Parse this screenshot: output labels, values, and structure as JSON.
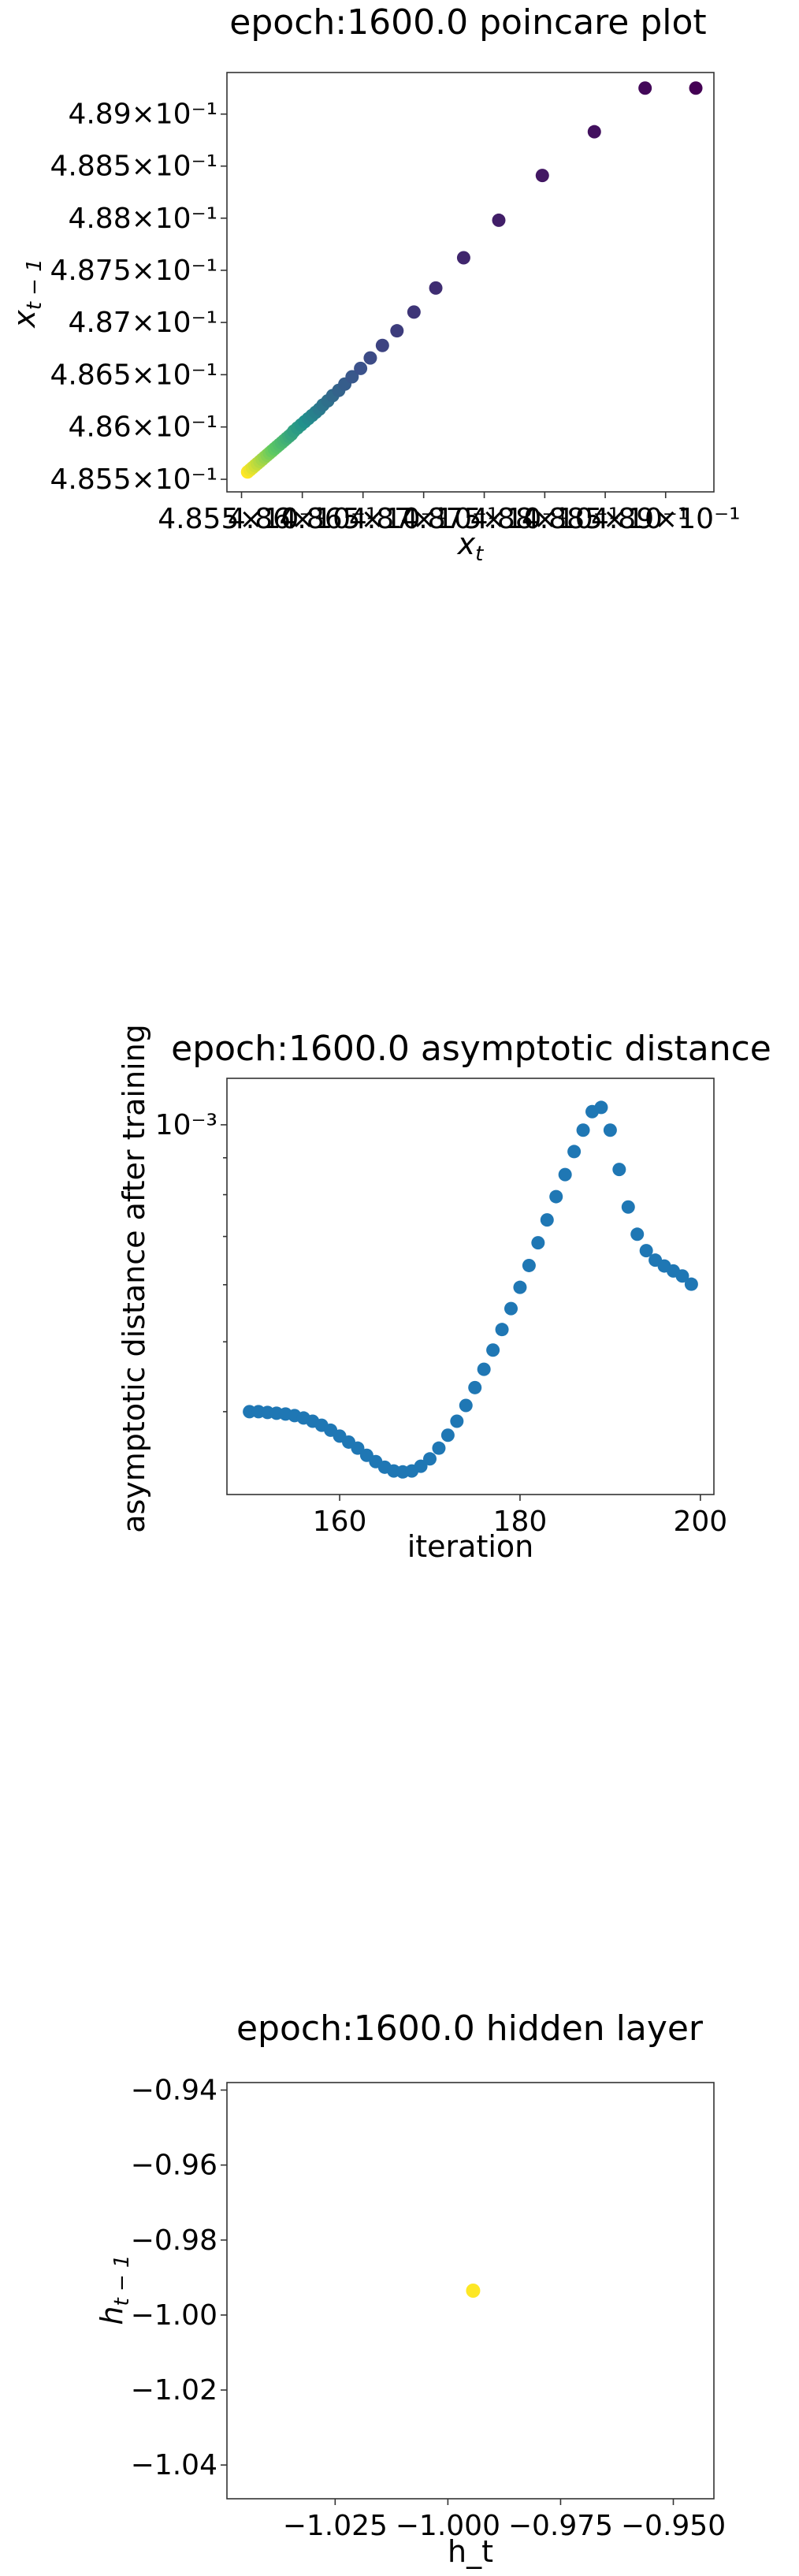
{
  "chart_data": [
    {
      "type": "scatter",
      "title": "epoch:1600.0 poincare plot",
      "xlabel": "x_t",
      "ylabel": "x_{t-1}",
      "scale": "log",
      "colormap": "viridis",
      "xlim": [
        0.48538,
        0.4894
      ],
      "ylim": [
        0.48538,
        0.4894
      ],
      "x_tick_labels": [
        "4.855×10⁻¹",
        "4.86×10⁻¹",
        "4.865×10⁻¹",
        "4.87×10⁻¹",
        "4.875×10⁻¹",
        "4.88×10⁻¹",
        "4.885×10⁻¹",
        "4.89×10⁻¹"
      ],
      "y_tick_labels": [
        "4.855×10⁻¹",
        "4.86×10⁻¹",
        "4.865×10⁻¹",
        "4.87×10⁻¹",
        "4.875×10⁻¹",
        "4.88×10⁻¹",
        "4.885×10⁻¹",
        "4.89×10⁻¹"
      ],
      "x_ticks": [
        0.4855,
        0.486,
        0.4865,
        0.487,
        0.4875,
        0.488,
        0.4885,
        0.489
      ],
      "y_ticks": [
        0.4855,
        0.486,
        0.4865,
        0.487,
        0.4875,
        0.488,
        0.4885,
        0.489
      ],
      "x": [
        0.48555,
        0.48557,
        0.48559,
        0.48561,
        0.48563,
        0.48565,
        0.48567,
        0.48569,
        0.48571,
        0.48573,
        0.48575,
        0.48577,
        0.48579,
        0.48581,
        0.48583,
        0.48585,
        0.48587,
        0.48589,
        0.48591,
        0.48593,
        0.48596,
        0.48599,
        0.48602,
        0.48605,
        0.48608,
        0.48611,
        0.48614,
        0.48617,
        0.48621,
        0.48625,
        0.4863,
        0.48635,
        0.48641,
        0.48648,
        0.48656,
        0.48666,
        0.48678,
        0.48692,
        0.4871,
        0.48733,
        0.48762,
        0.48798,
        0.48841,
        0.48883,
        0.48925
      ],
      "y": [
        0.48557,
        0.48559,
        0.48561,
        0.48563,
        0.48565,
        0.48567,
        0.48569,
        0.48571,
        0.48573,
        0.48575,
        0.48577,
        0.48579,
        0.48581,
        0.48583,
        0.48585,
        0.48587,
        0.48589,
        0.48591,
        0.48593,
        0.48596,
        0.48599,
        0.48602,
        0.48605,
        0.48608,
        0.48611,
        0.48614,
        0.48617,
        0.48621,
        0.48625,
        0.4863,
        0.48635,
        0.48641,
        0.48648,
        0.48656,
        0.48666,
        0.48678,
        0.48692,
        0.4871,
        0.48733,
        0.48762,
        0.48798,
        0.48841,
        0.48883,
        0.48925,
        0.48925
      ],
      "point_color_order": "later iterations yellow, earlier iterations purple"
    },
    {
      "type": "scatter",
      "title": "epoch:1600.0 asymptotic distance",
      "xlabel": "iteration",
      "ylabel": "asymptotic distance after training",
      "scale": "log-y",
      "color": "#1f77b4",
      "xlim": [
        147.5,
        201.5
      ],
      "ylim": [
        0.000307,
        0.00116
      ],
      "x_ticks": [
        160,
        180,
        200
      ],
      "x_tick_labels": [
        "160",
        "180",
        "200"
      ],
      "y_major_tick": 0.001,
      "y_major_label": "10⁻³",
      "x": [
        150,
        151,
        152,
        153,
        154,
        155,
        156,
        157,
        158,
        159,
        160,
        161,
        162,
        163,
        164,
        165,
        166,
        167,
        168,
        169,
        170,
        171,
        172,
        173,
        174,
        175,
        176,
        177,
        178,
        179,
        180,
        181,
        182,
        183,
        184,
        185,
        186,
        187,
        188,
        189,
        190,
        191,
        192,
        193,
        194,
        195,
        196,
        197,
        198,
        199
      ],
      "y": [
        0.0004,
        0.0004,
        0.000399,
        0.000398,
        0.000397,
        0.000395,
        0.000392,
        0.000388,
        0.000383,
        0.000377,
        0.00037,
        0.000363,
        0.000356,
        0.000348,
        0.000341,
        0.000335,
        0.000331,
        0.00033,
        0.000331,
        0.000336,
        0.000344,
        0.000356,
        0.000371,
        0.000388,
        0.000408,
        0.000432,
        0.000458,
        0.000487,
        0.00052,
        0.000556,
        0.000595,
        0.000638,
        0.000686,
        0.000738,
        0.000795,
        0.000853,
        0.000918,
        0.000983,
        0.001043,
        0.001057,
        0.000983,
        0.000867,
        0.000769,
        0.000705,
        0.000669,
        0.000649,
        0.000637,
        0.000627,
        0.000617,
        0.000601
      ]
    },
    {
      "type": "scatter",
      "title": "epoch:1600.0 hidden layer",
      "xlabel": "h_t",
      "ylabel": "h_{t-1}",
      "colormap": "viridis",
      "xlim": [
        -1.049,
        -0.941
      ],
      "ylim": [
        -1.049,
        -0.938
      ],
      "x_ticks": [
        -1.025,
        -1.0,
        -0.975,
        -0.95
      ],
      "x_tick_labels": [
        "−1.025",
        "−1.000",
        "−0.975",
        "−0.950"
      ],
      "y_ticks": [
        -0.94,
        -0.96,
        -0.98,
        -1.0,
        -1.02,
        -1.04
      ],
      "y_tick_labels": [
        "−0.94",
        "−0.96",
        "−0.98",
        "−1.00",
        "−1.02",
        "−1.04"
      ],
      "x": [
        -0.9944
      ],
      "y": [
        -0.9935
      ],
      "point_color": "#fde725"
    }
  ]
}
